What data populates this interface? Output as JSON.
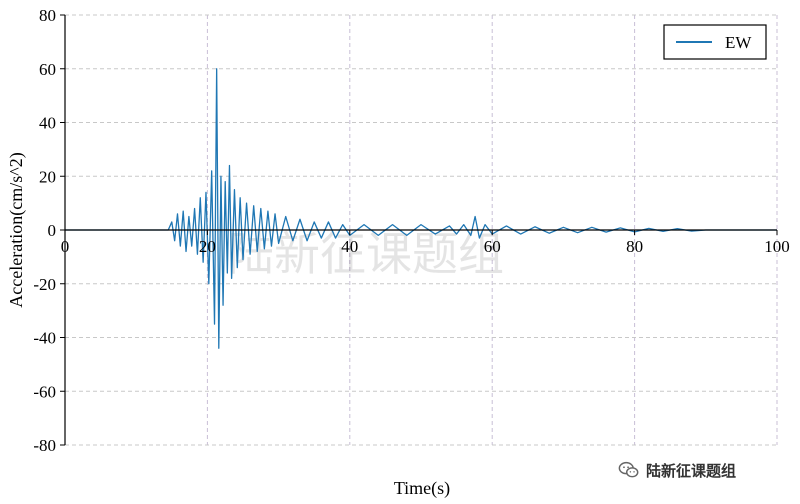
{
  "chart_data": {
    "type": "line",
    "xlabel": "Time(s)",
    "ylabel": "Acceleration(cm/s^2)",
    "xlim": [
      0,
      100
    ],
    "ylim": [
      -80,
      80
    ],
    "xticks": [
      0,
      20,
      40,
      60,
      80,
      100
    ],
    "yticks": [
      -80,
      -60,
      -40,
      -20,
      0,
      20,
      40,
      60,
      80
    ],
    "grid": true,
    "legend": "top-right",
    "series": [
      {
        "name": "EW",
        "color": "#1f77b4",
        "x": [
          0,
          14.5,
          15.0,
          15.4,
          15.8,
          16.2,
          16.6,
          17.0,
          17.4,
          17.8,
          18.2,
          18.6,
          19.0,
          19.4,
          19.8,
          20.2,
          20.6,
          21.0,
          21.3,
          21.6,
          21.9,
          22.2,
          22.5,
          22.8,
          23.1,
          23.4,
          23.8,
          24.2,
          24.6,
          25.0,
          25.5,
          26.0,
          26.5,
          27.0,
          27.5,
          28.0,
          28.5,
          29.0,
          29.5,
          30.0,
          31.0,
          32.0,
          33.0,
          34.0,
          35.0,
          36.0,
          37.0,
          38.0,
          39.0,
          40.0,
          42.0,
          44.0,
          46.0,
          48.0,
          50.0,
          52.0,
          54.0,
          55.0,
          56.0,
          57.0,
          57.6,
          58.2,
          59.0,
          60.0,
          62.0,
          64.0,
          66.0,
          68.0,
          70.0,
          72.0,
          74.0,
          76.0,
          78.0,
          80.0,
          82.0,
          84.0,
          86.0,
          88.0,
          90.0,
          100.0
        ],
        "values": [
          0,
          0,
          3,
          -4,
          6,
          -6,
          7,
          -8,
          5,
          -6,
          8,
          -9,
          12,
          -12,
          14,
          -20,
          22,
          -35,
          60,
          -44,
          20,
          -28,
          18,
          -16,
          24,
          -18,
          15,
          -14,
          12,
          -11,
          10,
          -9,
          9,
          -8,
          8,
          -7,
          7,
          -6,
          6,
          -5,
          5,
          -4,
          4,
          -4,
          3,
          -3,
          3,
          -3,
          2,
          -2,
          2,
          -2,
          2,
          -2,
          2,
          -1.5,
          1.5,
          -1.5,
          2,
          -2,
          5,
          -3,
          2,
          -1.5,
          1.5,
          -1.5,
          1.2,
          -1.2,
          1,
          -1,
          1,
          -0.8,
          0.8,
          -0.7,
          0.6,
          -0.5,
          0.5,
          -0.4,
          0,
          0
        ]
      }
    ]
  },
  "watermark": "陆新征课题组",
  "footer_badge": {
    "icon": "wechat-icon",
    "text": "陆新征课题组"
  }
}
